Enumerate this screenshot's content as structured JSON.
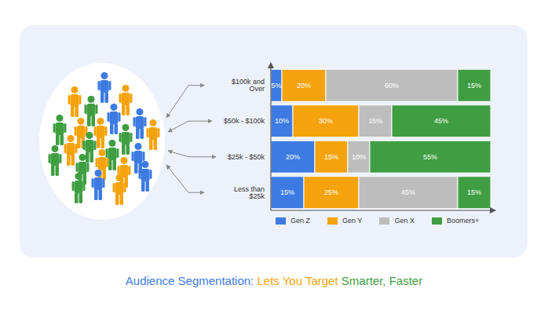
{
  "chart_data": {
    "type": "bar",
    "title": "Audience Segmentation: Lets You Target Smarter, Faster",
    "orientation": "horizontal",
    "stacked": true,
    "data_labels": true,
    "tick_labels": "y",
    "legend": "bottom",
    "xlim": [
      0,
      100
    ],
    "categories": [
      "$100k and Over",
      "$50k - $100k",
      "$25k - $50k",
      "Less than $25k"
    ],
    "series": [
      {
        "name": "Gen Z",
        "color": "#3d7be2",
        "values": [
          5,
          10,
          20,
          15
        ],
        "value_labels": [
          "5%",
          "10%",
          "20%",
          "15%"
        ]
      },
      {
        "name": "Gen Y",
        "color": "#f5a30c",
        "values": [
          20,
          30,
          15,
          25
        ],
        "value_labels": [
          "20%",
          "30%",
          "15%",
          "25%"
        ]
      },
      {
        "name": "Gen X",
        "color": "#bdbdbd",
        "values": [
          60,
          15,
          10,
          45
        ],
        "value_labels": [
          "60%",
          "15%",
          "10%",
          "45%"
        ]
      },
      {
        "name": "Boomers+",
        "color": "#3f9e42",
        "values": [
          15,
          45,
          55,
          15
        ],
        "value_labels": [
          "15%",
          "45%",
          "55%",
          "15%"
        ]
      }
    ]
  }
}
